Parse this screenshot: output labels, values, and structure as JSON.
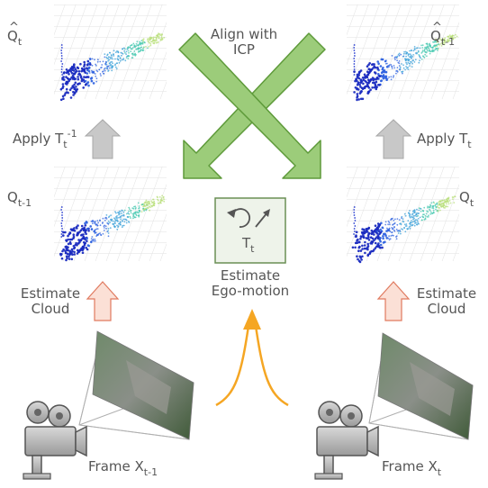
{
  "labels": {
    "q_hat_t": {
      "base": "Q",
      "sub": "t"
    },
    "q_hat_t1": {
      "base": "Q",
      "sub": "t-1"
    },
    "q_t1": {
      "base": "Q",
      "sub": "t-1"
    },
    "q_t": {
      "base": "Q",
      "sub": "t"
    },
    "align_line1": "Align with",
    "align_line2": "ICP",
    "apply_left": {
      "text": "Apply T",
      "sub": "t",
      "sup": "-1"
    },
    "apply_right": {
      "text": "Apply T",
      "sub": "t"
    },
    "transform": {
      "base": "T",
      "sub": "t"
    },
    "estimate_motion_line1": "Estimate",
    "estimate_motion_line2": "Ego-motion",
    "estimate_cloud_left_line1": "Estimate",
    "estimate_cloud_left_line2": "Cloud",
    "estimate_cloud_right_line1": "Estimate",
    "estimate_cloud_right_line2": "Cloud",
    "frame_left": {
      "text": "Frame X",
      "sub": "t-1"
    },
    "frame_right": {
      "text": "Frame X",
      "sub": "t"
    }
  },
  "colors": {
    "green_fill": "#9ccc7a",
    "green_stroke": "#5e9a3a",
    "gray_arrow": "#c8c8c8",
    "red_fill": "#fbe0d6",
    "red_stroke": "#e07a5f",
    "orange": "#f5a623",
    "text": "#555555"
  }
}
